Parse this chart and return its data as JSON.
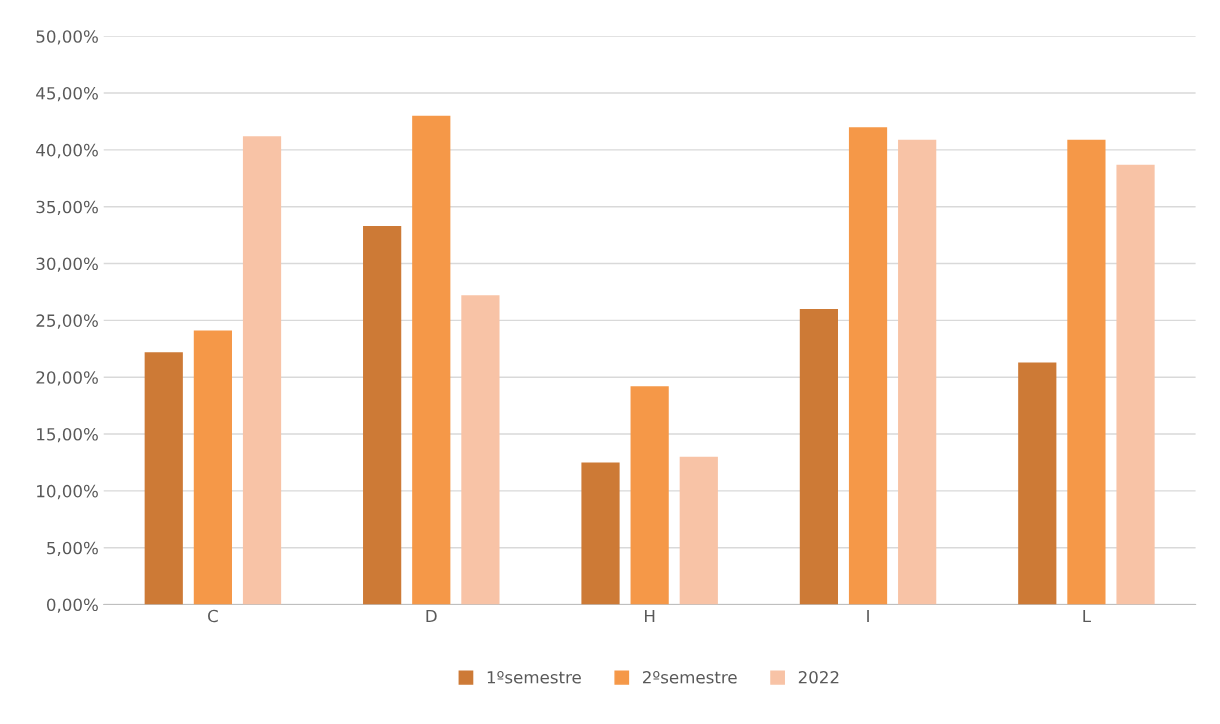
{
  "chart_data": {
    "type": "bar",
    "categories": [
      "C",
      "D",
      "H",
      "I",
      "L"
    ],
    "series": [
      {
        "name": "1ºsemestre",
        "color": "#cd7a36",
        "values": [
          22.2,
          33.3,
          12.5,
          26.0,
          21.3
        ]
      },
      {
        "name": "2ºsemestre",
        "color": "#f59848",
        "values": [
          24.1,
          43.0,
          19.2,
          42.0,
          40.9
        ]
      },
      {
        "name": "2022",
        "color": "#f8c3a6",
        "values": [
          41.2,
          27.2,
          13.0,
          40.9,
          38.7
        ]
      }
    ],
    "ylim": [
      0,
      50
    ],
    "yticks": [
      {
        "value": 0,
        "label": "0,00%"
      },
      {
        "value": 5,
        "label": "5,00%"
      },
      {
        "value": 10,
        "label": "10,00%"
      },
      {
        "value": 15,
        "label": "15,00%"
      },
      {
        "value": 20,
        "label": "20,00%"
      },
      {
        "value": 25,
        "label": "25,00%"
      },
      {
        "value": 30,
        "label": "30,00%"
      },
      {
        "value": 35,
        "label": "35,00%"
      },
      {
        "value": 40,
        "label": "40,00%"
      },
      {
        "value": 45,
        "label": "45,00%"
      },
      {
        "value": 50,
        "label": "50,00%"
      }
    ],
    "grid": "y",
    "legend": "bottom"
  }
}
